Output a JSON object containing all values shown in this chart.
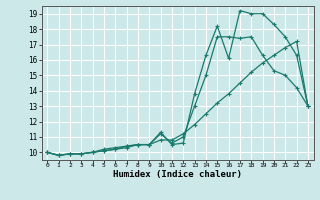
{
  "xlabel": "Humidex (Indice chaleur)",
  "ylabel": "",
  "bg_color": "#cce8e8",
  "grid_color": "#ffffff",
  "line_color": "#1a7a6e",
  "xlim": [
    -0.5,
    23.5
  ],
  "ylim": [
    9.5,
    19.5
  ],
  "xticks": [
    0,
    1,
    2,
    3,
    4,
    5,
    6,
    7,
    8,
    9,
    10,
    11,
    12,
    13,
    14,
    15,
    16,
    17,
    18,
    19,
    20,
    21,
    22,
    23
  ],
  "yticks": [
    10,
    11,
    12,
    13,
    14,
    15,
    16,
    17,
    18,
    19
  ],
  "series1_x": [
    0,
    1,
    2,
    3,
    4,
    5,
    6,
    7,
    8,
    9,
    10,
    11,
    12,
    13,
    14,
    15,
    16,
    17,
    18,
    19,
    20,
    21,
    22,
    23
  ],
  "series1_y": [
    10.0,
    9.8,
    9.9,
    9.9,
    10.0,
    10.1,
    10.2,
    10.3,
    10.5,
    10.5,
    11.3,
    10.5,
    10.6,
    13.8,
    16.3,
    18.2,
    16.1,
    19.2,
    19.0,
    19.0,
    18.3,
    17.5,
    16.3,
    13.0
  ],
  "series2_x": [
    0,
    1,
    2,
    3,
    4,
    5,
    6,
    7,
    8,
    9,
    10,
    11,
    12,
    13,
    14,
    15,
    16,
    17,
    18,
    19,
    20,
    21,
    22,
    23
  ],
  "series2_y": [
    10.0,
    9.8,
    9.9,
    9.9,
    10.0,
    10.2,
    10.3,
    10.4,
    10.5,
    10.5,
    11.2,
    10.6,
    11.0,
    13.0,
    15.0,
    17.5,
    17.5,
    17.4,
    17.5,
    16.3,
    15.3,
    15.0,
    14.2,
    13.0
  ],
  "series3_x": [
    0,
    1,
    2,
    3,
    4,
    5,
    6,
    7,
    8,
    9,
    10,
    11,
    12,
    13,
    14,
    15,
    16,
    17,
    18,
    19,
    20,
    21,
    22,
    23
  ],
  "series3_y": [
    10.0,
    9.8,
    9.9,
    9.9,
    10.0,
    10.1,
    10.2,
    10.4,
    10.5,
    10.5,
    10.8,
    10.8,
    11.2,
    11.8,
    12.5,
    13.2,
    13.8,
    14.5,
    15.2,
    15.8,
    16.3,
    16.8,
    17.2,
    13.0
  ],
  "marker": "+",
  "markersize": 3,
  "linewidth": 0.9
}
